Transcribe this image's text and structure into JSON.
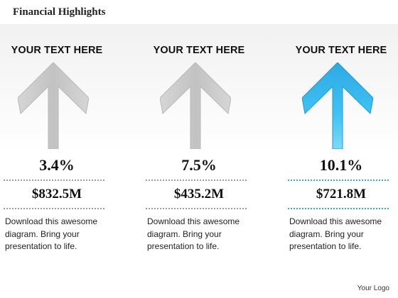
{
  "title": "Financial Highlights",
  "logo_text": "Your Logo",
  "colors": {
    "gray_arrow": "#c8c8c8",
    "blue_arrow": "#27aee6",
    "blue_divider": "#27aee6"
  },
  "columns": [
    {
      "heading": "YOUR TEXT HERE",
      "percent": "3.4%",
      "amount": "$832.5M",
      "description": "Download this awesome diagram. Bring your presentation to life.",
      "highlighted": false,
      "icon": "up-arrow-icon"
    },
    {
      "heading": "YOUR TEXT HERE",
      "percent": "7.5%",
      "amount": "$435.2M",
      "description": "Download this awesome diagram. Bring your presentation to life.",
      "highlighted": false,
      "icon": "up-arrow-icon"
    },
    {
      "heading": "YOUR TEXT HERE",
      "percent": "10.1%",
      "amount": "$721.8M",
      "description": "Download this awesome diagram. Bring your presentation to life.",
      "highlighted": true,
      "icon": "up-arrow-icon"
    }
  ]
}
